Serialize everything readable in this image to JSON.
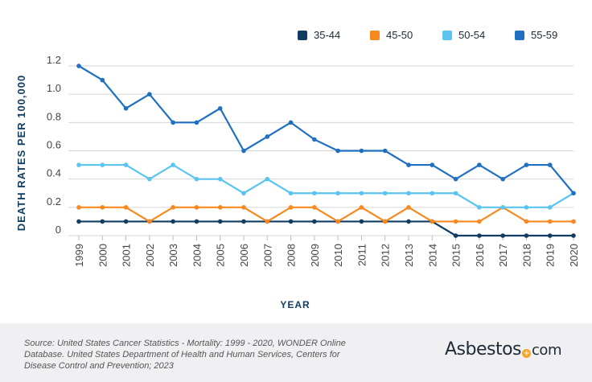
{
  "chart_data": {
    "type": "line",
    "title": "",
    "xlabel": "YEAR",
    "ylabel": "DEATH RATES PER 100,000",
    "ylim": [
      0,
      1.2
    ],
    "yticks": [
      "0",
      "0.2",
      "0.4",
      "0.6",
      "0.8",
      "1.0",
      "1.2"
    ],
    "grid": true,
    "legend_position": "top-right",
    "x": [
      "1999",
      "2000",
      "2001",
      "2002",
      "2003",
      "2004",
      "2005",
      "2006",
      "2007",
      "2008",
      "2009",
      "2010",
      "2011",
      "2012",
      "2013",
      "2014",
      "2015",
      "2016",
      "2017",
      "2018",
      "2019",
      "2020"
    ],
    "series": [
      {
        "name": "35-44",
        "color": "#123d63",
        "values": [
          0.1,
          0.1,
          0.1,
          0.1,
          0.1,
          0.1,
          0.1,
          0.1,
          0.1,
          0.1,
          0.1,
          0.1,
          0.1,
          0.1,
          0.1,
          0.1,
          0,
          0,
          0,
          0,
          0,
          0
        ]
      },
      {
        "name": "45-50",
        "color": "#f7891f",
        "values": [
          0.2,
          0.2,
          0.2,
          0.1,
          0.2,
          0.2,
          0.2,
          0.2,
          0.1,
          0.2,
          0.2,
          0.1,
          0.2,
          0.1,
          0.2,
          0.1,
          0.1,
          0.1,
          0.2,
          0.1,
          0.1,
          0.1
        ]
      },
      {
        "name": "50-54",
        "color": "#5bc4f0",
        "values": [
          0.5,
          0.5,
          0.5,
          0.4,
          0.5,
          0.4,
          0.4,
          0.3,
          0.4,
          0.3,
          0.3,
          0.3,
          0.3,
          0.3,
          0.3,
          0.3,
          0.3,
          0.2,
          0.2,
          0.2,
          0.2,
          0.3
        ]
      },
      {
        "name": "55-59",
        "color": "#1f70c1",
        "values": [
          1.2,
          1.1,
          0.9,
          1.0,
          0.8,
          0.8,
          0.9,
          0.6,
          0.7,
          0.8,
          0.68,
          0.6,
          0.6,
          0.6,
          0.5,
          0.5,
          0.4,
          0.5,
          0.4,
          0.5,
          0.5,
          0.3
        ]
      }
    ]
  },
  "footer": {
    "source": "Source: United States Cancer Statistics - Mortality: 1999 - 2020, WONDER Online Database. United States Department of Health and Human Services, Centers for Disease Control and Prevention; 2023",
    "logo_text": "Asbestos.com"
  }
}
